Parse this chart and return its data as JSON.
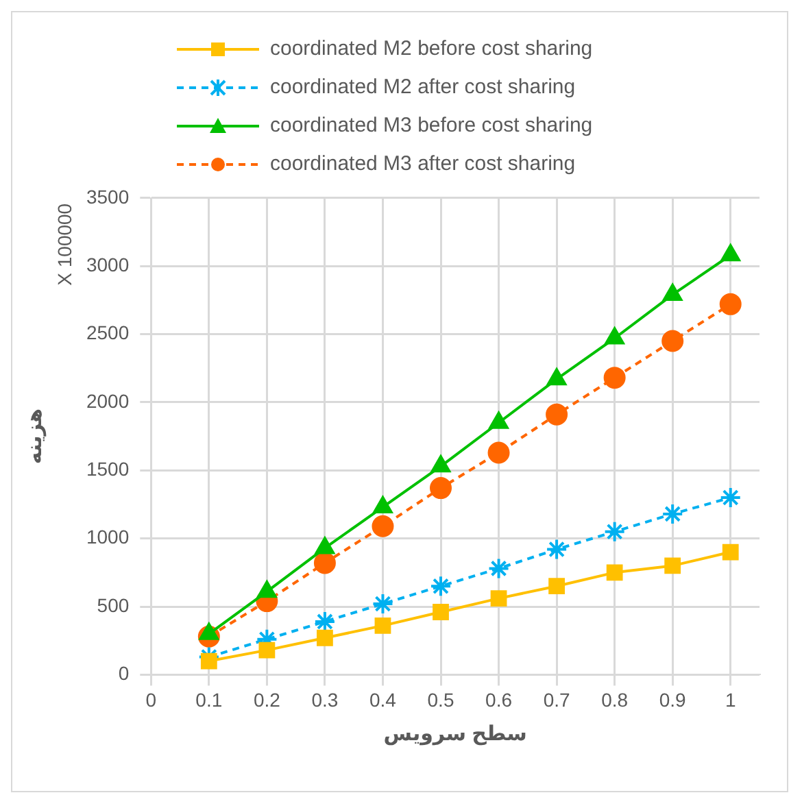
{
  "chart_data": {
    "type": "line",
    "xlabel": "سطح سرویس",
    "ylabel": "هزینه",
    "annotations": [
      "X 100000"
    ],
    "x": [
      0.1,
      0.2,
      0.3,
      0.4,
      0.5,
      0.6,
      0.7,
      0.8,
      0.9,
      1
    ],
    "xlim": [
      0,
      1.05
    ],
    "xticks": [
      0,
      0.1,
      0.2,
      0.3,
      0.4,
      0.5,
      0.6,
      0.7,
      0.8,
      0.9,
      1
    ],
    "ylim": [
      0,
      3500
    ],
    "yticks": [
      0,
      500,
      1000,
      1500,
      2000,
      2500,
      3000,
      3500
    ],
    "grid": true,
    "legend": "top",
    "series": [
      {
        "name": "coordinated M2 before cost sharing",
        "color": "#ffc000",
        "marker": "square",
        "line_style": "solid",
        "values": [
          100,
          180,
          270,
          360,
          460,
          560,
          650,
          750,
          800,
          900
        ]
      },
      {
        "name": "coordinated M2 after cost sharing",
        "color": "#00b0f0",
        "marker": "cross",
        "line_style": "dashed",
        "values": [
          130,
          260,
          390,
          520,
          650,
          780,
          920,
          1050,
          1180,
          1300
        ]
      },
      {
        "name": "coordinated M3 before cost sharing",
        "color": "#00c000",
        "marker": "triangle",
        "line_style": "solid",
        "values": [
          300,
          610,
          930,
          1230,
          1530,
          1850,
          2170,
          2470,
          2790,
          3080
        ]
      },
      {
        "name": "coordinated M3 after cost sharing",
        "color": "#ff6600",
        "marker": "circle",
        "line_style": "dashed",
        "values": [
          280,
          540,
          820,
          1090,
          1370,
          1630,
          1910,
          2180,
          2450,
          2720
        ]
      }
    ]
  }
}
